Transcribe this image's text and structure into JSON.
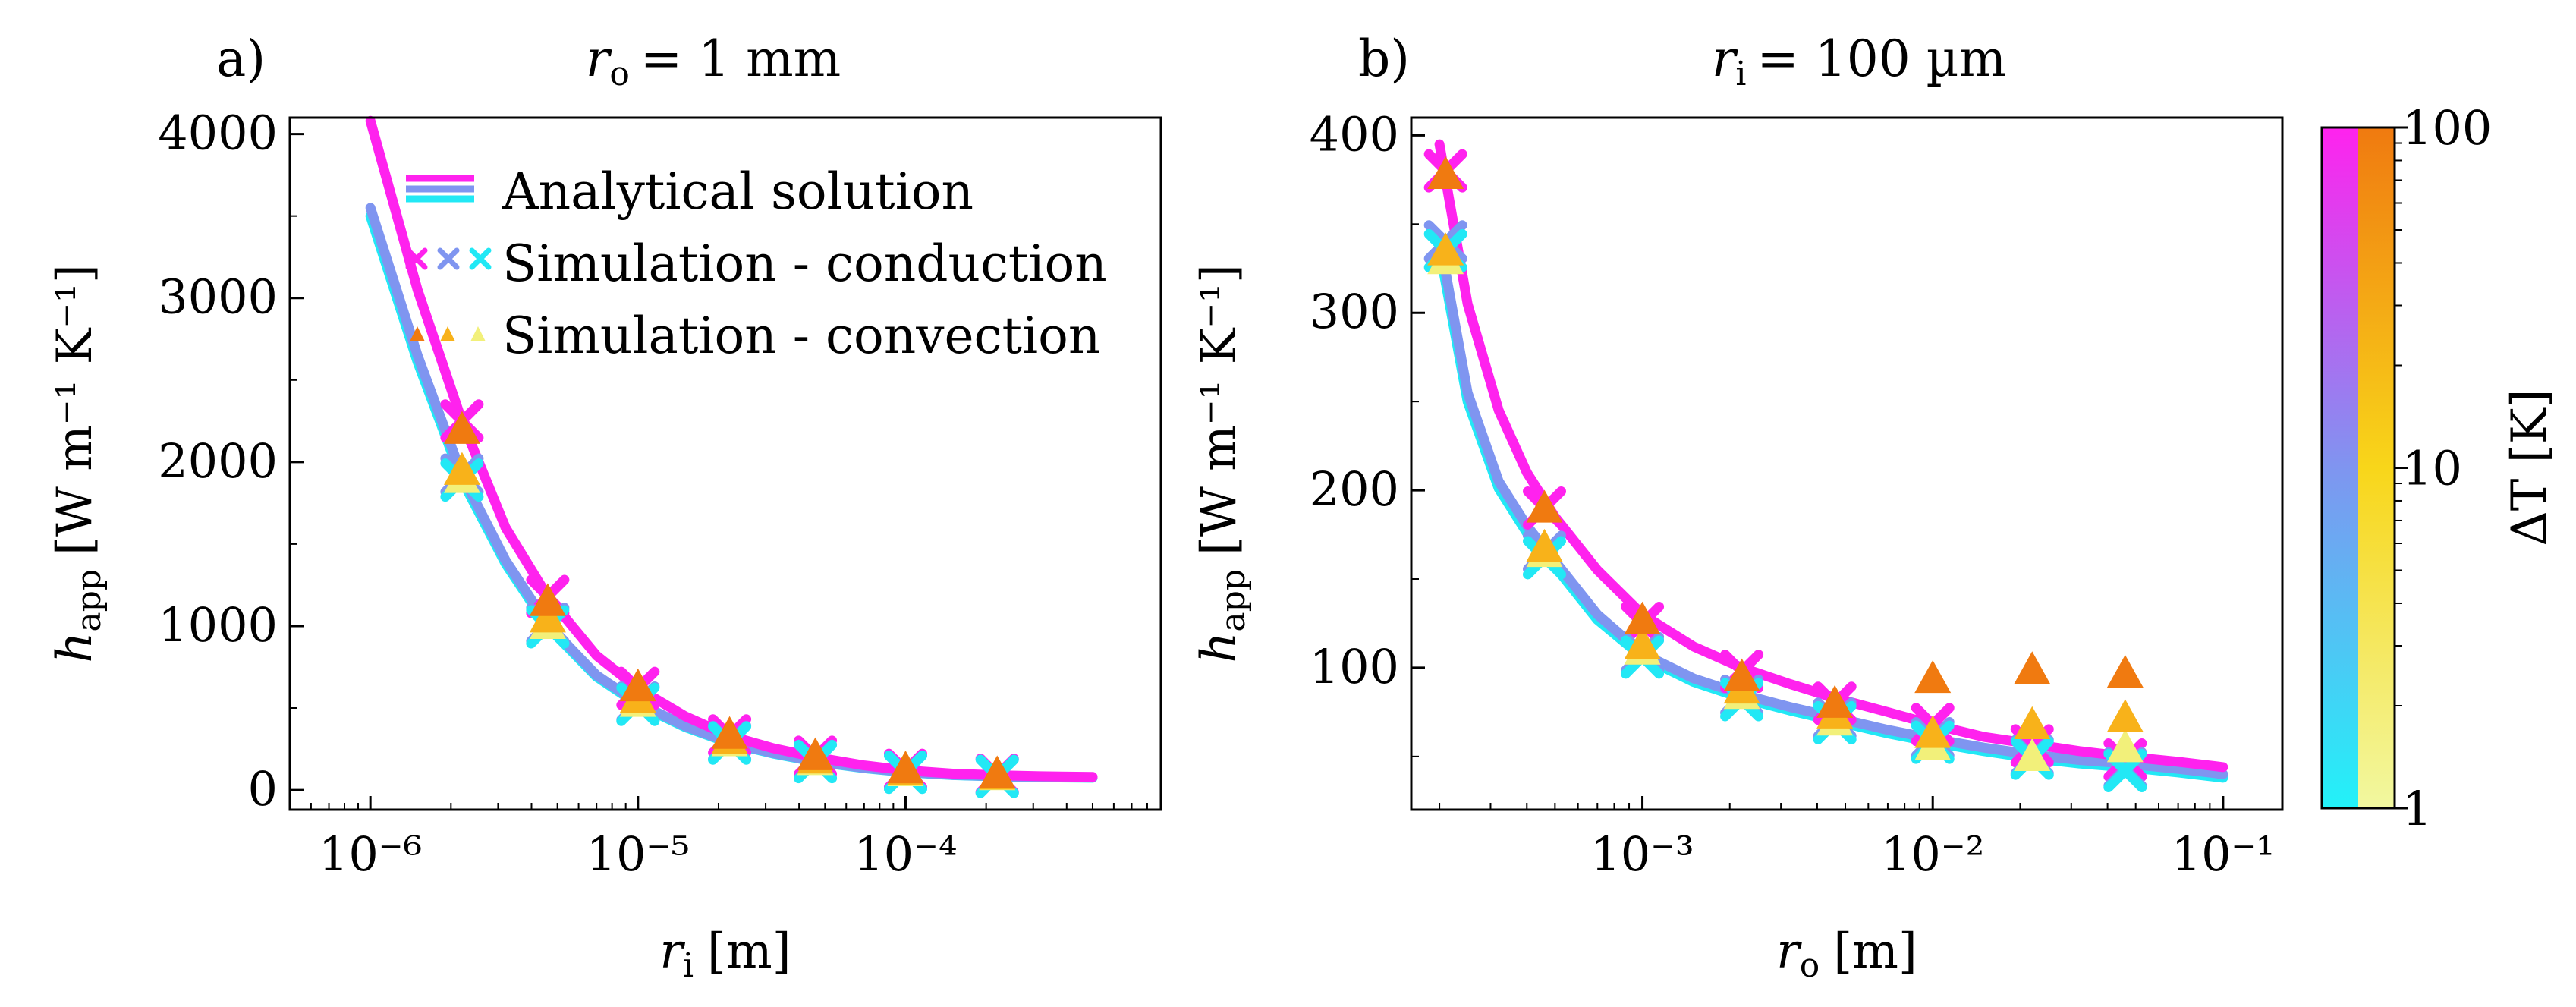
{
  "chart_data": [
    {
      "type": "line",
      "panel_tag": "a)",
      "title": "r_o = 1 mm",
      "title_parts": {
        "var": "r",
        "sub": "o",
        "rest": "= 1 mm"
      },
      "xlabel": {
        "var": "r",
        "sub": "i",
        "unit": "[m]"
      },
      "ylabel": {
        "var": "h",
        "sub": "app",
        "unit": "[W m⁻¹ K⁻¹]"
      },
      "xscale": "log",
      "xlim": [
        5e-07,
        0.0009
      ],
      "ylim": [
        -120,
        4100
      ],
      "xticks": [
        {
          "value": 1e-06,
          "label": "10⁻⁶"
        },
        {
          "value": 1e-05,
          "label": "10⁻⁵"
        },
        {
          "value": 0.0001,
          "label": "10⁻⁴"
        }
      ],
      "yticks": [
        {
          "value": 0,
          "label": "0"
        },
        {
          "value": 1000,
          "label": "1000"
        },
        {
          "value": 2000,
          "label": "2000"
        },
        {
          "value": 3000,
          "label": "3000"
        },
        {
          "value": 4000,
          "label": "4000"
        }
      ],
      "series": [
        {
          "name": "Analytical solution (ΔT = 100 K)",
          "kind": "curve",
          "color": "#ff22ee",
          "x": [
            1e-06,
            1.5e-06,
            2.2e-06,
            3.2e-06,
            4.6e-06,
            7e-06,
            1e-05,
            1.5e-05,
            2.2e-05,
            3.2e-05,
            4.6e-05,
            7e-05,
            0.0001,
            0.00015,
            0.00022,
            0.00032,
            0.0005
          ],
          "y": [
            4080,
            3050,
            2250,
            1600,
            1180,
            820,
            620,
            450,
            330,
            255,
            200,
            150,
            120,
            100,
            90,
            84,
            80
          ]
        },
        {
          "name": "Analytical solution (ΔT = 10 K)",
          "kind": "curve",
          "color": "#7f95f0",
          "x": [
            1e-06,
            1.5e-06,
            2.2e-06,
            3.2e-06,
            4.6e-06,
            7e-06,
            1e-05,
            1.5e-05,
            2.2e-05,
            3.2e-05,
            4.6e-05,
            7e-05,
            0.0001,
            0.00015,
            0.00022,
            0.00032,
            0.0005
          ],
          "y": [
            3550,
            2650,
            1920,
            1400,
            1010,
            700,
            530,
            390,
            290,
            225,
            175,
            135,
            110,
            92,
            84,
            79,
            76
          ]
        },
        {
          "name": "Analytical solution (ΔT = 1 K)",
          "kind": "curve",
          "color": "#22e8f5",
          "x": [
            1e-06,
            1.5e-06,
            2.2e-06,
            3.2e-06,
            4.6e-06,
            7e-06,
            1e-05,
            1.5e-05,
            2.2e-05,
            3.2e-05,
            4.6e-05,
            7e-05,
            0.0001,
            0.00015,
            0.00022,
            0.00032,
            0.0005
          ],
          "y": [
            3500,
            2610,
            1890,
            1380,
            995,
            690,
            522,
            384,
            286,
            222,
            173,
            133,
            108,
            91,
            83,
            78,
            75
          ]
        },
        {
          "name": "Simulation - conduction (ΔT = 100 K)",
          "kind": "cross",
          "color": "#ff22ee",
          "x": [
            2.2e-06,
            4.6e-06,
            1e-05,
            2.2e-05,
            4.6e-05,
            0.0001,
            0.00022
          ],
          "y": [
            2250,
            1180,
            620,
            330,
            200,
            120,
            90
          ]
        },
        {
          "name": "Simulation - conduction (ΔT = 10 K)",
          "kind": "cross",
          "color": "#7f95f0",
          "x": [
            2.2e-06,
            4.6e-06,
            1e-05,
            2.2e-05,
            4.6e-05,
            0.0001,
            0.00022
          ],
          "y": [
            1920,
            1010,
            530,
            290,
            175,
            110,
            84
          ]
        },
        {
          "name": "Simulation - conduction (ΔT = 1 K)",
          "kind": "cross",
          "color": "#22e8f5",
          "x": [
            2.2e-06,
            4.6e-06,
            1e-05,
            2.2e-05,
            4.6e-05,
            0.0001,
            0.00022
          ],
          "y": [
            1890,
            995,
            522,
            286,
            173,
            108,
            83
          ]
        },
        {
          "name": "Simulation - convection (ΔT = 100 K)",
          "kind": "triangle",
          "color": "#f07a10",
          "x": [
            2.2e-06,
            4.6e-06,
            1e-05,
            2.2e-05,
            4.6e-05,
            0.0001,
            0.00022
          ],
          "y": [
            2200,
            1150,
            630,
            340,
            210,
            130,
            100
          ]
        },
        {
          "name": "Simulation - convection (ΔT = 10 K)",
          "kind": "triangle",
          "color": "#f8b21a",
          "x": [
            2.2e-06,
            4.6e-06,
            1e-05,
            2.2e-05,
            4.6e-05,
            0.0001,
            0.00022
          ],
          "y": [
            1950,
            1050,
            560,
            310,
            190,
            120,
            92
          ]
        },
        {
          "name": "Simulation - convection (ΔT = 1 K)",
          "kind": "triangle",
          "color": "#f2f07a",
          "x": [
            2.2e-06,
            4.6e-06,
            1e-05,
            2.2e-05,
            4.6e-05,
            0.0001,
            0.00022
          ],
          "y": [
            1900,
            1010,
            535,
            295,
            180,
            112,
            88
          ]
        }
      ],
      "legend": {
        "placement": "top-right",
        "entries": [
          {
            "label": "Analytical solution",
            "kind": "lines",
            "colors": [
              "#ff22ee",
              "#7f95f0",
              "#22e8f5"
            ]
          },
          {
            "label": "Simulation - conduction",
            "kind": "crosses",
            "colors": [
              "#ff22ee",
              "#7f95f0",
              "#22e8f5"
            ]
          },
          {
            "label": "Simulation - convection",
            "kind": "triangles",
            "colors": [
              "#f07a10",
              "#f8b21a",
              "#f2f07a"
            ]
          }
        ]
      }
    },
    {
      "type": "line",
      "panel_tag": "b)",
      "title": "r_i = 100 µm",
      "title_parts": {
        "var": "r",
        "sub": "i",
        "rest": "= 100 µm"
      },
      "xlabel": {
        "var": "r",
        "sub": "o",
        "unit": "[m]"
      },
      "ylabel": {
        "var": "h",
        "sub": "app",
        "unit": "[W m⁻¹ K⁻¹]"
      },
      "xscale": "log",
      "xlim": [
        0.00016,
        0.16
      ],
      "ylim": [
        20,
        410
      ],
      "xticks": [
        {
          "value": 0.001,
          "label": "10⁻³"
        },
        {
          "value": 0.01,
          "label": "10⁻²"
        },
        {
          "value": 0.1,
          "label": "10⁻¹"
        }
      ],
      "yticks": [
        {
          "value": 100,
          "label": "100"
        },
        {
          "value": 200,
          "label": "200"
        },
        {
          "value": 300,
          "label": "300"
        },
        {
          "value": 400,
          "label": "400"
        }
      ],
      "series": [
        {
          "name": "Analytical solution (ΔT = 100 K)",
          "kind": "curve",
          "color": "#ff22ee",
          "x": [
            0.0002,
            0.00025,
            0.00032,
            0.0004,
            0.0005,
            0.0007,
            0.001,
            0.0015,
            0.0022,
            0.0032,
            0.0046,
            0.007,
            0.01,
            0.015,
            0.022,
            0.032,
            0.046,
            0.07,
            0.1
          ],
          "y": [
            395,
            305,
            245,
            210,
            185,
            155,
            130,
            112,
            100,
            91,
            83,
            75,
            68,
            61,
            57,
            53,
            50,
            47,
            44
          ]
        },
        {
          "name": "Analytical solution (ΔT = 10 K)",
          "kind": "curve",
          "color": "#7f95f0",
          "x": [
            0.0002,
            0.00025,
            0.00032,
            0.0004,
            0.0005,
            0.0007,
            0.001,
            0.0015,
            0.0022,
            0.0032,
            0.0046,
            0.007,
            0.01,
            0.015,
            0.022,
            0.032,
            0.046,
            0.07,
            0.1
          ],
          "y": [
            342,
            255,
            205,
            180,
            160,
            130,
            108,
            94,
            85,
            78,
            72,
            65,
            60,
            55,
            51,
            48,
            46,
            43,
            40
          ]
        },
        {
          "name": "Analytical solution (ΔT = 1 K)",
          "kind": "curve",
          "color": "#22e8f5",
          "x": [
            0.0002,
            0.00025,
            0.00032,
            0.0004,
            0.0005,
            0.0007,
            0.001,
            0.0015,
            0.0022,
            0.0032,
            0.0046,
            0.007,
            0.01,
            0.015,
            0.022,
            0.032,
            0.046,
            0.07,
            0.1
          ],
          "y": [
            336,
            250,
            201,
            176,
            157,
            127,
            106,
            92,
            83,
            76,
            70,
            63,
            58,
            53,
            49,
            46,
            44,
            41,
            38
          ]
        },
        {
          "name": "Simulation - conduction (ΔT = 100 K)",
          "kind": "cross",
          "color": "#ff22ee",
          "x": [
            0.00021,
            0.00046,
            0.001,
            0.0022,
            0.0046,
            0.01,
            0.022,
            0.046
          ],
          "y": [
            380,
            190,
            125,
            98,
            80,
            68,
            56,
            48
          ]
        },
        {
          "name": "Simulation - conduction (ΔT = 10 K)",
          "kind": "cross",
          "color": "#7f95f0",
          "x": [
            0.00021,
            0.00046,
            0.001,
            0.0022,
            0.0046,
            0.01,
            0.022,
            0.046
          ],
          "y": [
            340,
            165,
            108,
            84,
            71,
            60,
            50,
            43
          ]
        },
        {
          "name": "Simulation - conduction (ΔT = 1 K)",
          "kind": "cross",
          "color": "#22e8f5",
          "x": [
            0.00021,
            0.00046,
            0.001,
            0.0022,
            0.0046,
            0.01,
            0.022,
            0.046
          ],
          "y": [
            335,
            162,
            106,
            82,
            69,
            58,
            49,
            42
          ]
        },
        {
          "name": "Simulation - convection (ΔT = 100 K)",
          "kind": "triangle",
          "color": "#f07a10",
          "x": [
            0.00021,
            0.00046,
            0.001,
            0.0022,
            0.0046,
            0.01,
            0.022,
            0.046
          ],
          "y": [
            378,
            190,
            127,
            95,
            80,
            94,
            99,
            97
          ]
        },
        {
          "name": "Simulation - convection (ΔT = 10 K)",
          "kind": "triangle",
          "color": "#f8b21a",
          "x": [
            0.00021,
            0.00046,
            0.001,
            0.0022,
            0.0046,
            0.01,
            0.022,
            0.046
          ],
          "y": [
            335,
            168,
            113,
            88,
            74,
            63,
            68,
            72
          ]
        },
        {
          "name": "Simulation - convection (ΔT = 1 K)",
          "kind": "triangle",
          "color": "#f2f07a",
          "x": [
            0.00021,
            0.00046,
            0.001,
            0.0022,
            0.0046,
            0.01,
            0.022,
            0.046
          ],
          "y": [
            330,
            165,
            110,
            85,
            70,
            56,
            50,
            55
          ]
        }
      ]
    }
  ],
  "colorbar": {
    "label": "ΔT [K]",
    "scale": "log",
    "range": [
      1,
      100
    ],
    "ticks": [
      {
        "value": 1,
        "label": "1"
      },
      {
        "value": 10,
        "label": "10"
      },
      {
        "value": 100,
        "label": "100"
      }
    ],
    "conduction_gradient": [
      "#22f2f8",
      "#7f95f0",
      "#ff22ee"
    ],
    "convection_gradient": [
      "#f2f8a0",
      "#f8d61a",
      "#f07a10"
    ]
  }
}
